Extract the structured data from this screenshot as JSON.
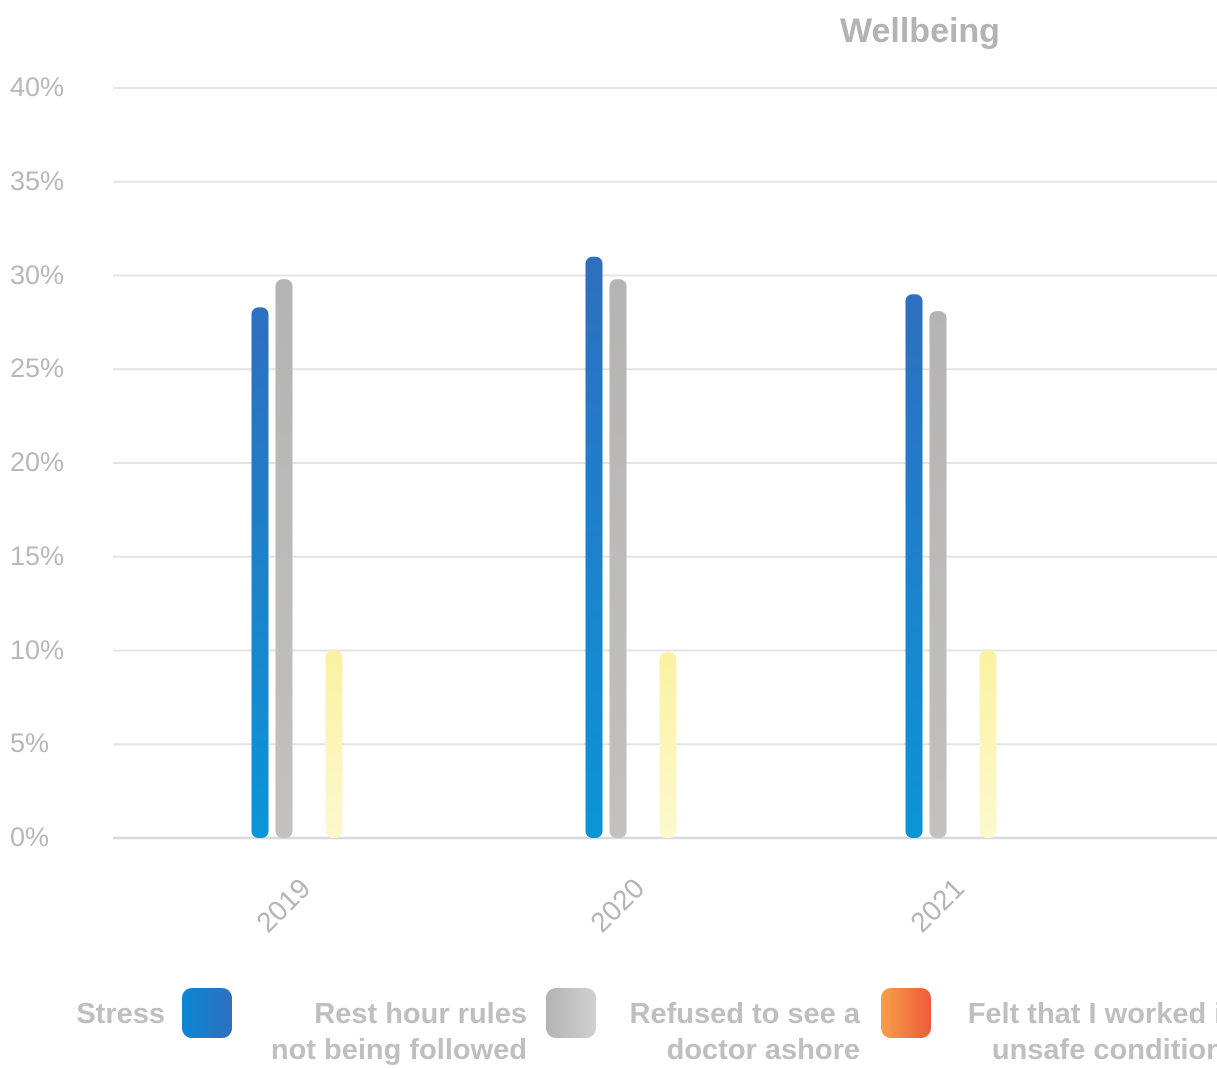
{
  "chart_data": {
    "type": "bar",
    "title": "Wellbeing",
    "categories": [
      "2019",
      "2020",
      "2021"
    ],
    "ylim": [
      0,
      40
    ],
    "yticks": [
      "0%",
      "5%",
      "10%",
      "15%",
      "20%",
      "25%",
      "30%",
      "35%",
      "40%"
    ],
    "series": [
      {
        "name": "Stress",
        "values": [
          28.3,
          31.0,
          29.0
        ],
        "color_top": "#2e6fbf",
        "color_bottom": "#0b95d6"
      },
      {
        "name": "Rest hour rules\nnot being followed",
        "values": [
          29.8,
          29.8,
          28.1
        ],
        "color_top": "#b5b3b3",
        "color_bottom": "#c4c0c0"
      },
      {
        "name": "Refused to see a\ndoctor ashore",
        "values": [
          0,
          0,
          0
        ],
        "color_top": "#f5a04a",
        "color_bottom": "#ef6a3a"
      },
      {
        "name": "Felt that I worked in\nunsafe conditions",
        "values": [
          10.0,
          9.9,
          10.0
        ],
        "color_top": "#faf2a0",
        "color_bottom": "#fdf8cf"
      }
    ],
    "grid": true,
    "legend_position": "bottom",
    "legend_swatch_colors": [
      [
        "#0b86d6",
        "#2e6fbf"
      ],
      [
        "#b3b3b3",
        "#d0d0d0"
      ],
      [
        "#f5a04a",
        "#ef5a3a"
      ],
      [
        "#f5a04a",
        "#ef5a3a"
      ]
    ]
  }
}
